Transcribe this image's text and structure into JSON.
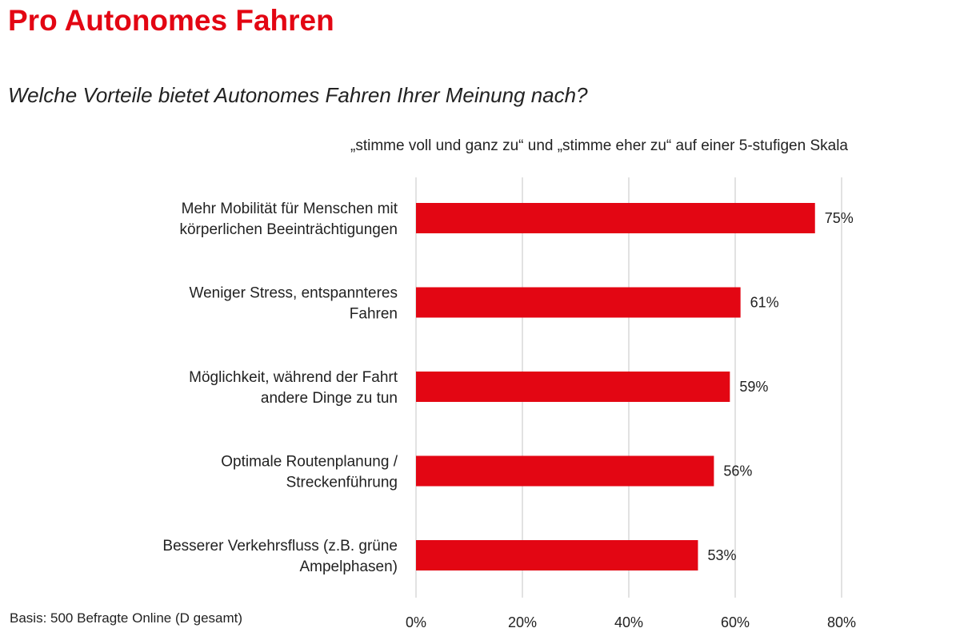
{
  "header": {
    "title": "Pro Autonomes Fahren",
    "question": "Welche Vorteile bietet Autonomes Fahren Ihrer Meinung nach?",
    "scale_note": "„stimme voll und ganz zu“ und „stimme eher zu“ auf einer 5-stufigen Skala"
  },
  "footer": {
    "basis": "Basis: 500 Befragte Online (D gesamt)"
  },
  "colors": {
    "accent": "#e30613",
    "bar": "#e30613",
    "grid": "#d9d9d9"
  },
  "chart_data": {
    "type": "bar",
    "orientation": "horizontal",
    "categories": [
      [
        "Mehr Mobilität für Menschen mit",
        "körperlichen Beeinträchtigungen"
      ],
      [
        "Weniger Stress, entspannteres",
        "Fahren"
      ],
      [
        "Möglichkeit, während der Fahrt",
        "andere Dinge zu tun"
      ],
      [
        "Optimale Routenplanung /",
        "Streckenführung"
      ],
      [
        "Besserer Verkehrsfluss (z.B. grüne",
        "Ampelphasen)"
      ]
    ],
    "values": [
      75,
      61,
      59,
      56,
      53
    ],
    "value_labels": [
      "75%",
      "61%",
      "59%",
      "56%",
      "53%"
    ],
    "xlim": [
      0,
      80
    ],
    "xticks": [
      0,
      20,
      40,
      60,
      80
    ],
    "xtick_labels": [
      "0%",
      "20%",
      "40%",
      "60%",
      "80%"
    ],
    "grid": true,
    "legend": "none"
  }
}
